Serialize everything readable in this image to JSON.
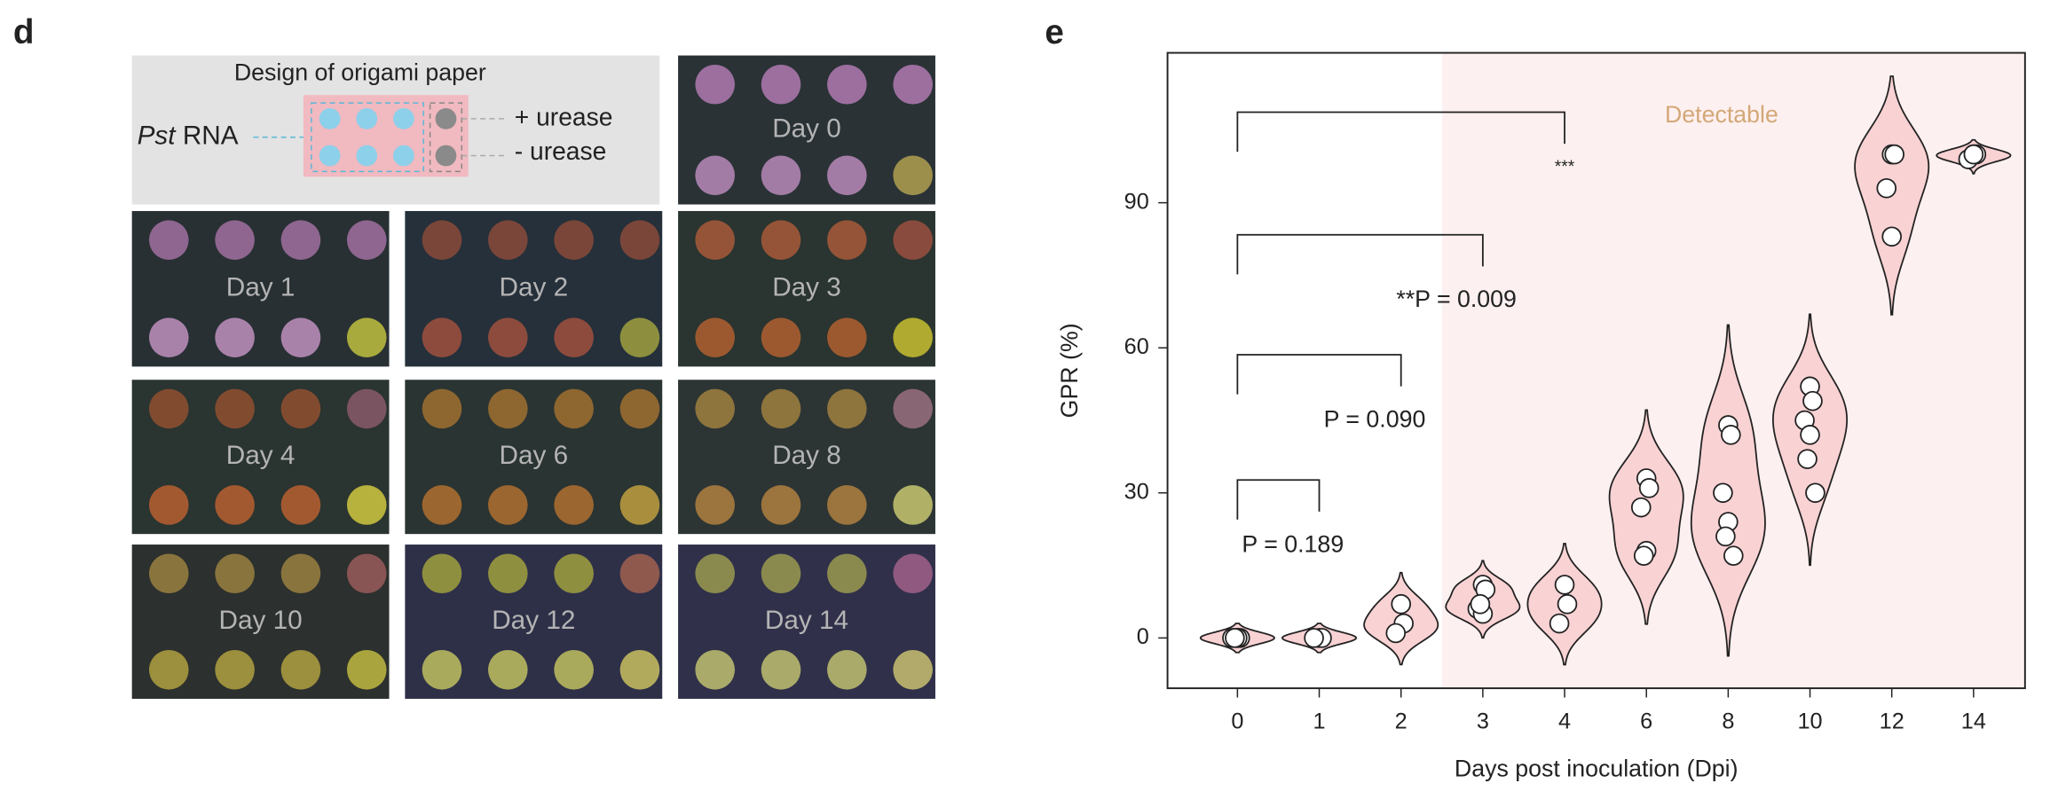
{
  "panel_d": {
    "label": "d",
    "design": {
      "title": "Design of origami paper",
      "target_species": "Pst",
      "target": "RNA",
      "plus": "+ urease",
      "minus": "- urease"
    },
    "tiles": [
      "Day 0",
      "Day 1",
      "Day 2",
      "Day 3",
      "Day 4",
      "Day 6",
      "Day 8",
      "Day 10",
      "Day 12",
      "Day 14"
    ]
  },
  "chart_data": {
    "type": "violin",
    "label": "e",
    "xlabel": "Days post inoculation (Dpi)",
    "ylabel": "GPR (%)",
    "categories": [
      "0",
      "1",
      "2",
      "3",
      "4",
      "6",
      "8",
      "10",
      "12",
      "14"
    ],
    "values": [
      [
        0,
        0,
        0,
        0,
        0
      ],
      [
        0,
        0,
        0
      ],
      [
        7,
        3,
        1
      ],
      [
        11,
        10,
        6,
        5,
        7
      ],
      [
        11,
        7,
        3
      ],
      [
        33,
        31,
        27,
        18,
        17
      ],
      [
        44,
        42,
        30,
        24,
        21,
        17
      ],
      [
        52,
        49,
        45,
        42,
        37,
        30
      ],
      [
        100,
        100,
        93,
        83
      ],
      [
        100,
        100,
        99,
        100
      ]
    ],
    "color": "#f9d2d4",
    "ylim": [
      -10.4,
      121
    ],
    "yticks": [
      0,
      30,
      60,
      90
    ],
    "region_label": "Detectable",
    "annotations": [
      {
        "text": "***",
        "between": [
          "0",
          "4"
        ]
      },
      {
        "text": "**P = 0.009",
        "between": [
          "0",
          "3"
        ]
      },
      {
        "text": "P = 0.090",
        "between": [
          "0",
          "2"
        ]
      },
      {
        "text": "P = 0.189",
        "between": [
          "0",
          "1"
        ]
      }
    ]
  }
}
